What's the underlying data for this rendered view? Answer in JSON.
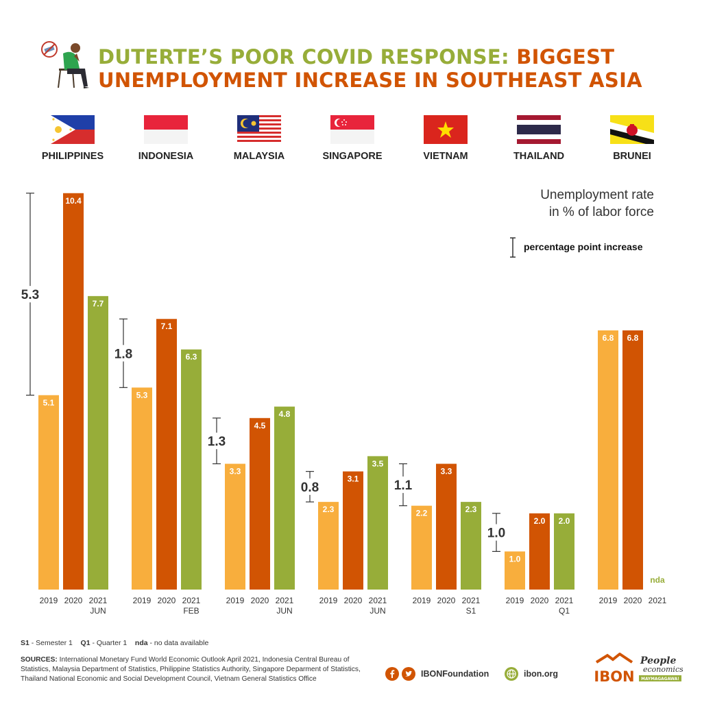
{
  "header": {
    "title_part1": "DUTERTE’S POOR COVID RESPONSE: ",
    "title_part2": "BIGGEST",
    "title_line2": "UNEMPLOYMENT INCREASE IN SOUTHEAST ASIA"
  },
  "legend": {
    "title_line1": "Unemployment rate",
    "title_line2": "in % of labor force",
    "increase_label": "percentage point increase"
  },
  "colors": {
    "y2019": "#f8ae3d",
    "y2020": "#d15403",
    "y2021": "#97ad39",
    "bracket": "#333333",
    "title_green": "#97ad39",
    "title_orange": "#d15403"
  },
  "chart_data": {
    "type": "bar",
    "ylim": [
      0,
      11
    ],
    "series_names": [
      "2019",
      "2020",
      "2021"
    ],
    "groups": [
      {
        "country": "PHILIPPINES",
        "flag": "philippines-flag",
        "values": [
          5.1,
          10.4,
          7.7
        ],
        "labels": [
          "5.1",
          "10.4",
          "7.7"
        ],
        "x_labels": [
          "2019",
          "2020",
          "2021"
        ],
        "sub_label": "JUN",
        "increase": "5.3"
      },
      {
        "country": "INDONESIA",
        "flag": "indonesia-flag",
        "values": [
          5.3,
          7.1,
          6.3
        ],
        "labels": [
          "5.3",
          "7.1",
          "6.3"
        ],
        "x_labels": [
          "2019",
          "2020",
          "2021"
        ],
        "sub_label": "FEB",
        "increase": "1.8"
      },
      {
        "country": "MALAYSIA",
        "flag": "malaysia-flag",
        "values": [
          3.3,
          4.5,
          4.8
        ],
        "labels": [
          "3.3",
          "4.5",
          "4.8"
        ],
        "x_labels": [
          "2019",
          "2020",
          "2021"
        ],
        "sub_label": "JUN",
        "increase": "1.3"
      },
      {
        "country": "SINGAPORE",
        "flag": "singapore-flag",
        "values": [
          2.3,
          3.1,
          3.5
        ],
        "labels": [
          "2.3",
          "3.1",
          "3.5"
        ],
        "x_labels": [
          "2019",
          "2020",
          "2021"
        ],
        "sub_label": "JUN",
        "increase": "0.8"
      },
      {
        "country": "VIETNAM",
        "flag": "vietnam-flag",
        "values": [
          2.2,
          3.3,
          2.3
        ],
        "labels": [
          "2.2",
          "3.3",
          "2.3"
        ],
        "x_labels": [
          "2019",
          "2020",
          "2021"
        ],
        "sub_label": "S1",
        "increase": "1.1"
      },
      {
        "country": "THAILAND",
        "flag": "thailand-flag",
        "values": [
          1.0,
          2.0,
          2.0
        ],
        "labels": [
          "1.0",
          "2.0",
          "2.0"
        ],
        "x_labels": [
          "2019",
          "2020",
          "2021"
        ],
        "sub_label": "Q1",
        "increase": "1.0"
      },
      {
        "country": "BRUNEI",
        "flag": "brunei-flag",
        "values": [
          6.8,
          6.8,
          null
        ],
        "labels": [
          "6.8",
          "6.8",
          "nda"
        ],
        "x_labels": [
          "2019",
          "2020",
          "2021"
        ],
        "sub_label": "",
        "increase": ""
      }
    ]
  },
  "footnote": {
    "s1_key": "S1",
    "s1_text": " - Semester 1",
    "q1_key": "Q1",
    "q1_text": " - Quarter 1",
    "nda_key": "nda",
    "nda_text": " - no data available"
  },
  "sources": {
    "label": "SOURCES:",
    "text": " International Monetary Fund World Economic Outlook April 2021, Indonesia Central Bureau of Statistics, Malaysia Department of Statistics, Philippine Statistics Authority, Singapore Deparment of Statistics, Thailand National Economic and Social Development Council, Vietnam General Statistics Office"
  },
  "footer": {
    "social_handle": "IBONFoundation",
    "website": "ibon.org",
    "logo_text": "IBON",
    "people_text_1": "People",
    "people_text_2": "economics",
    "people_tag": "MAYMAGAGAWA!"
  }
}
